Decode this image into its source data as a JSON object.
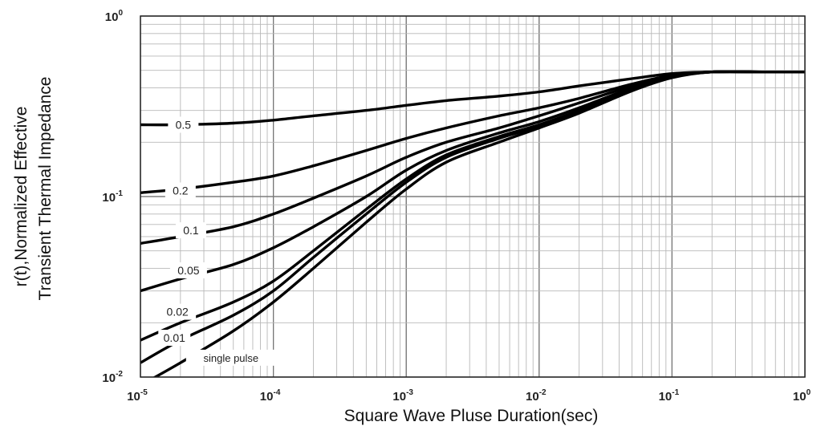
{
  "chart_data": {
    "type": "line",
    "xscale": "log",
    "yscale": "log",
    "xlim": [
      1e-05,
      1
    ],
    "ylim": [
      0.01,
      1
    ],
    "grid": true,
    "xlabel": "Square Wave Pluse Duration(sec)",
    "ylabel": [
      "r(t),Normalized Effective",
      "Transient Thermal Impedance"
    ],
    "x_ticks": [
      {
        "value": 1e-05,
        "base": "10",
        "exp": "-5"
      },
      {
        "value": 0.0001,
        "base": "10",
        "exp": "-4"
      },
      {
        "value": 0.001,
        "base": "10",
        "exp": "-3"
      },
      {
        "value": 0.01,
        "base": "10",
        "exp": "-2"
      },
      {
        "value": 0.1,
        "base": "10",
        "exp": "-1"
      },
      {
        "value": 1,
        "base": "10",
        "exp": "0"
      }
    ],
    "y_ticks": [
      {
        "value": 1,
        "base": "10",
        "exp": "0"
      },
      {
        "value": 0.1,
        "base": "10",
        "exp": "-1"
      },
      {
        "value": 0.01,
        "base": "10",
        "exp": "-2"
      }
    ],
    "x": [
      1e-05,
      2e-05,
      5e-05,
      0.0001,
      0.0002,
      0.0005,
      0.001,
      0.002,
      0.005,
      0.01,
      0.02,
      0.05,
      0.1,
      0.2,
      0.5,
      1
    ],
    "series": [
      {
        "name": "0.5",
        "values": [
          0.25,
          0.25,
          0.255,
          0.265,
          0.28,
          0.3,
          0.32,
          0.34,
          0.36,
          0.38,
          0.41,
          0.45,
          0.48,
          0.49,
          0.49,
          0.49
        ]
      },
      {
        "name": "0.2",
        "values": [
          0.105,
          0.11,
          0.12,
          0.13,
          0.148,
          0.18,
          0.21,
          0.24,
          0.28,
          0.31,
          0.35,
          0.42,
          0.47,
          0.49,
          0.49,
          0.49
        ]
      },
      {
        "name": "0.1",
        "values": [
          0.055,
          0.06,
          0.068,
          0.08,
          0.098,
          0.13,
          0.165,
          0.2,
          0.24,
          0.28,
          0.33,
          0.41,
          0.47,
          0.49,
          0.49,
          0.49
        ]
      },
      {
        "name": "0.05",
        "values": [
          0.03,
          0.035,
          0.042,
          0.052,
          0.068,
          0.1,
          0.14,
          0.18,
          0.225,
          0.26,
          0.31,
          0.4,
          0.465,
          0.49,
          0.49,
          0.49
        ]
      },
      {
        "name": "0.02",
        "values": [
          0.016,
          0.02,
          0.026,
          0.034,
          0.05,
          0.085,
          0.125,
          0.17,
          0.215,
          0.25,
          0.3,
          0.395,
          0.46,
          0.49,
          0.49,
          0.49
        ]
      },
      {
        "name": "0.01",
        "values": [
          0.012,
          0.016,
          0.022,
          0.03,
          0.046,
          0.08,
          0.12,
          0.165,
          0.21,
          0.245,
          0.295,
          0.39,
          0.46,
          0.49,
          0.49,
          0.49
        ]
      },
      {
        "name": "single pulse",
        "values": [
          0.009,
          0.012,
          0.018,
          0.026,
          0.04,
          0.072,
          0.11,
          0.155,
          0.2,
          0.24,
          0.29,
          0.385,
          0.455,
          0.49,
          0.49,
          0.49
        ]
      }
    ],
    "curve_labels": [
      "0.5",
      "0.2",
      "0.1",
      "0.05",
      "0.02",
      "0.01",
      "single pulse"
    ]
  }
}
